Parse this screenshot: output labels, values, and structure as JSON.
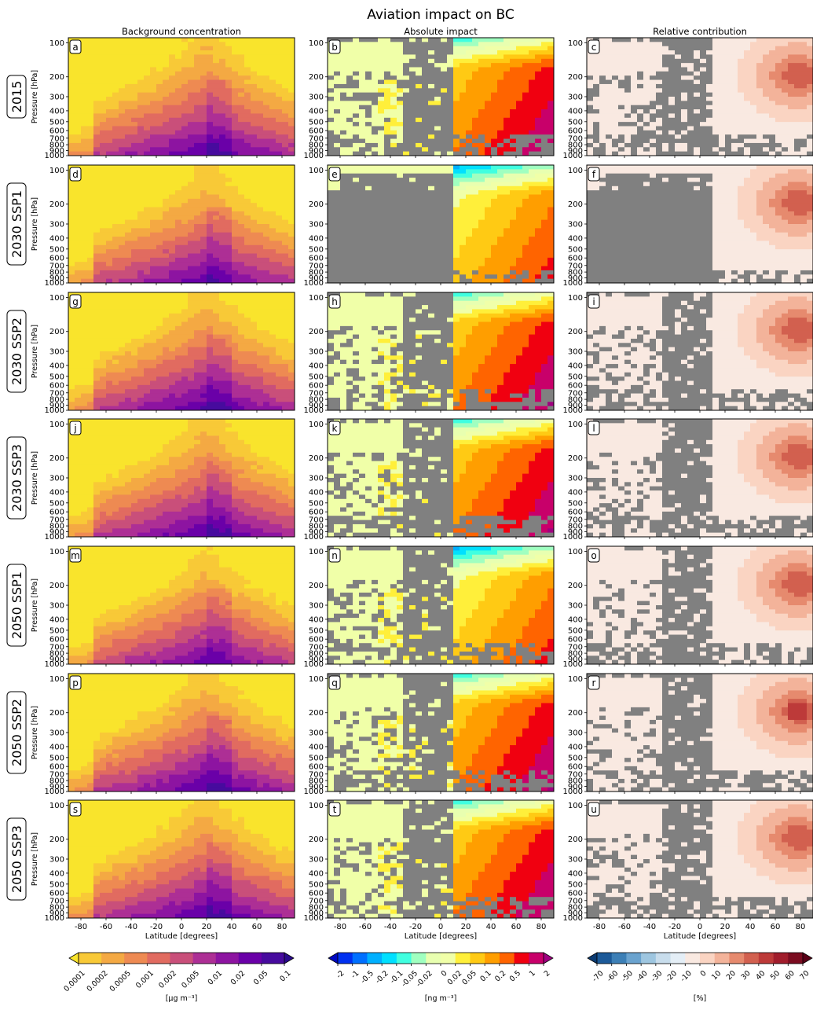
{
  "figure": {
    "title": "Aviation impact on BC",
    "column_titles": [
      "Background concentration",
      "Absolute impact",
      "Relative contribution"
    ],
    "row_labels": [
      "2015",
      "2030 SSP1",
      "2030 SSP2",
      "2030 SSP3",
      "2050 SSP1",
      "2050 SSP2",
      "2050 SSP3"
    ],
    "ylabel": "Pressure [hPa]",
    "xlabel": "Latitude [degrees]",
    "panel_letters": [
      "a",
      "b",
      "c",
      "d",
      "e",
      "f",
      "g",
      "h",
      "i",
      "j",
      "k",
      "l",
      "m",
      "n",
      "o",
      "p",
      "q",
      "r",
      "s",
      "t",
      "u"
    ],
    "grey_color": "#808080"
  },
  "chart_data": [
    {
      "type": "heatmap",
      "column": "Background concentration",
      "x": "Latitude [degrees]",
      "xlim": [
        -90,
        90
      ],
      "x_ticks": [
        -80,
        -60,
        -40,
        -20,
        0,
        20,
        40,
        60,
        80
      ],
      "y": "Pressure [hPa]",
      "y_scale": "log",
      "ylim": [
        1000,
        90
      ],
      "y_ticks": [
        100,
        200,
        300,
        400,
        500,
        600,
        700,
        800,
        900,
        1000
      ],
      "colorbar": {
        "label": "[μg m⁻³]",
        "levels": [
          "0.0001",
          "0.0002",
          "0.0005",
          "0.001",
          "0.002",
          "0.005",
          "0.01",
          "0.02",
          "0.05",
          "0.1"
        ],
        "colors": [
          "#f9e42c",
          "#f8c937",
          "#f4a943",
          "#ee8a52",
          "#e16b60",
          "#c94f7a",
          "#ad2f95",
          "#8d14a1",
          "#6a00a8",
          "#470b9e",
          "#2a0a8c"
        ],
        "extend": "both"
      },
      "description": "BC background concentration maximum near the surface over 0–40°N, decreasing upward and poleward"
    },
    {
      "type": "heatmap",
      "column": "Absolute impact",
      "x": "Latitude [degrees]",
      "xlim": [
        -90,
        90
      ],
      "y": "Pressure [hPa]",
      "y_scale": "log",
      "colorbar": {
        "label": "[ng m⁻³]",
        "levels": [
          "-2",
          "-1",
          "-0.5",
          "-0.2",
          "-0.1",
          "-0.05",
          "-0.02",
          "0",
          "0.02",
          "0.05",
          "0.1",
          "0.2",
          "0.5",
          "1",
          "2"
        ],
        "colors": [
          "#0008c0",
          "#0030f0",
          "#0070ff",
          "#00b0ff",
          "#00e0ff",
          "#40ffe0",
          "#a0ffc0",
          "#e8ffb0",
          "#f0ffa8",
          "#ffef3a",
          "#ffca14",
          "#ff9e00",
          "#ff6400",
          "#f00010",
          "#c8006a",
          "#a00080"
        ],
        "extend": "both"
      },
      "description": "positive impact concentrated in northern mid/high latitudes, grey = not significant"
    },
    {
      "type": "heatmap",
      "column": "Relative contribution",
      "x": "Latitude [degrees]",
      "xlim": [
        -90,
        90
      ],
      "y": "Pressure [hPa]",
      "y_scale": "log",
      "colorbar": {
        "label": "[%]",
        "levels": [
          "-70",
          "-60",
          "-50",
          "-40",
          "-30",
          "-20",
          "-10",
          "0",
          "10",
          "20",
          "30",
          "40",
          "50",
          "60",
          "70"
        ],
        "colors": [
          "#0b3b72",
          "#1c5a99",
          "#3c7fb6",
          "#6aa3cf",
          "#9ec6e0",
          "#c8ddec",
          "#e4eef6",
          "#f9e9e1",
          "#fad4c2",
          "#f3b39a",
          "#e68a6e",
          "#d2604f",
          "#bd3a39",
          "#a11d2c",
          "#7b0c20",
          "#5a0016"
        ],
        "extend": "both"
      },
      "description": "relative contribution up to ~40-60% near 200-300 hPa at 60-90°N"
    }
  ]
}
